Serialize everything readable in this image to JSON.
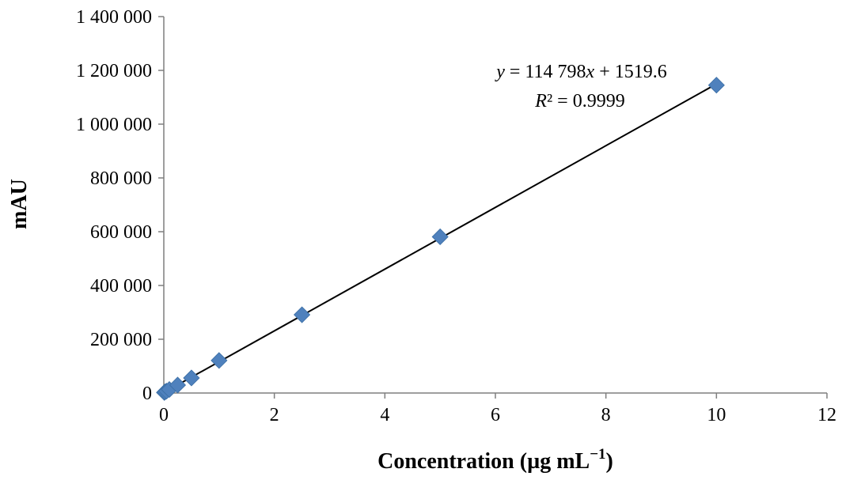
{
  "chart_data": {
    "type": "scatter",
    "title": "",
    "xlabel": "Concentration (µg mL",
    "xlabel_sup": "−1",
    "xlabel_close": ")",
    "ylabel": "mAU",
    "xlim": [
      0,
      12
    ],
    "ylim": [
      0,
      1400000
    ],
    "x_ticks": [
      0,
      2,
      4,
      6,
      8,
      10,
      12
    ],
    "x_tick_labels": [
      "0",
      "2",
      "4",
      "6",
      "8",
      "10",
      "12"
    ],
    "y_ticks": [
      0,
      200000,
      400000,
      600000,
      800000,
      1000000,
      1200000,
      1400000
    ],
    "y_tick_labels": [
      "0",
      "200 000",
      "400 000",
      "600 000",
      "800 000",
      "1 000 000",
      "1 200 000",
      "1 400 000"
    ],
    "grid": false,
    "legend": "none",
    "series": [
      {
        "marker": "diamond",
        "color": "#4f81bd",
        "points": [
          {
            "x": 0.01,
            "y": 2000
          },
          {
            "x": 0.025,
            "y": 4500
          },
          {
            "x": 0.05,
            "y": 7000
          },
          {
            "x": 0.1,
            "y": 13000
          },
          {
            "x": 0.25,
            "y": 29500
          },
          {
            "x": 0.5,
            "y": 56000
          },
          {
            "x": 1,
            "y": 121000
          },
          {
            "x": 2.5,
            "y": 291000
          },
          {
            "x": 5,
            "y": 581000
          },
          {
            "x": 10,
            "y": 1145000
          }
        ]
      }
    ],
    "trendline": {
      "slope": 114798,
      "intercept": 1519.6,
      "x_range": [
        0,
        10
      ],
      "color": "#000000",
      "equation_y": "y",
      "equation_mid": " = 114 798",
      "equation_x": "x",
      "equation_end": " + 1519.6",
      "r2_label": "R",
      "r2_rest": "² = 0.9999"
    }
  }
}
